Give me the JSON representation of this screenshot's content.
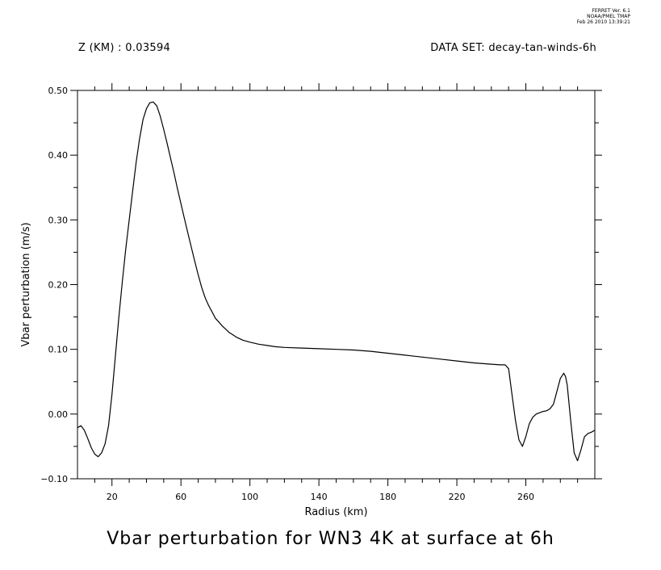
{
  "header": {
    "stamp_lines": [
      "FERRET Ver. 6.1",
      "NOAA/PMEL TMAP",
      "Feb 26 2010 13:39:21"
    ],
    "left_text": "Z (KM) : 0.03594",
    "right_text": "DATA SET: decay-tan-winds-6h"
  },
  "chart_data": {
    "type": "line",
    "title": "Vbar perturbation for WN3 4K at surface at 6h",
    "xlabel": "Radius (km)",
    "ylabel": "Vbar perturbation (m/s)",
    "xlim": [
      0,
      300
    ],
    "ylim": [
      -0.1,
      0.5
    ],
    "xticks": [
      20,
      60,
      100,
      140,
      180,
      220,
      260
    ],
    "xtick_labels": [
      "20",
      "60",
      "100",
      "140",
      "180",
      "220",
      "260"
    ],
    "xminor_step": 10,
    "yticks": [
      -0.1,
      0.0,
      0.1,
      0.2,
      0.3,
      0.4,
      0.5
    ],
    "ytick_labels": [
      "−0.10",
      "0.00",
      "0.10",
      "0.20",
      "0.30",
      "0.40",
      "0.50"
    ],
    "yminor_step": 0.05,
    "grid": false,
    "series": [
      {
        "x": [
          0,
          2,
          4,
          6,
          8,
          10,
          12,
          14,
          16,
          18,
          20,
          22,
          24,
          26,
          28,
          30,
          32,
          34,
          36,
          38,
          40,
          42,
          44,
          46,
          48,
          50,
          52,
          54,
          56,
          58,
          60,
          62,
          64,
          66,
          68,
          70,
          72,
          74,
          76,
          78,
          80,
          84,
          88,
          92,
          96,
          100,
          105,
          110,
          115,
          120,
          130,
          140,
          150,
          160,
          170,
          180,
          190,
          200,
          210,
          220,
          230,
          240,
          245,
          248,
          250,
          252,
          254,
          256,
          258,
          260,
          262,
          264,
          266,
          268,
          270,
          272,
          274,
          276,
          278,
          280,
          282,
          283,
          284,
          286,
          288,
          290,
          292,
          294,
          296,
          298,
          300
        ],
        "y": [
          -0.021,
          -0.018,
          -0.025,
          -0.038,
          -0.052,
          -0.062,
          -0.066,
          -0.06,
          -0.046,
          -0.018,
          0.03,
          0.09,
          0.15,
          0.205,
          0.255,
          0.3,
          0.345,
          0.388,
          0.425,
          0.455,
          0.472,
          0.481,
          0.482,
          0.476,
          0.46,
          0.44,
          0.418,
          0.395,
          0.372,
          0.348,
          0.325,
          0.302,
          0.28,
          0.258,
          0.236,
          0.215,
          0.196,
          0.18,
          0.168,
          0.158,
          0.148,
          0.136,
          0.126,
          0.119,
          0.114,
          0.111,
          0.108,
          0.106,
          0.104,
          0.103,
          0.102,
          0.101,
          0.1,
          0.099,
          0.097,
          0.094,
          0.091,
          0.088,
          0.085,
          0.082,
          0.079,
          0.077,
          0.076,
          0.076,
          0.07,
          0.03,
          -0.01,
          -0.04,
          -0.05,
          -0.035,
          -0.015,
          -0.005,
          0.0,
          0.002,
          0.004,
          0.005,
          0.008,
          0.015,
          0.035,
          0.055,
          0.063,
          0.058,
          0.045,
          -0.01,
          -0.06,
          -0.072,
          -0.055,
          -0.035,
          -0.03,
          -0.028,
          -0.025
        ]
      }
    ]
  }
}
